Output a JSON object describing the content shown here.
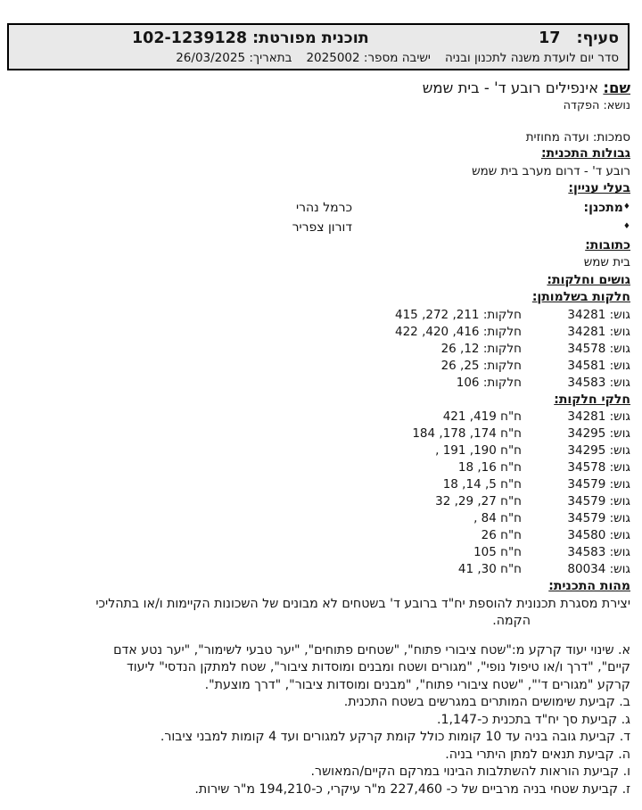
{
  "header": {
    "section_label": "סעיף:",
    "section_number": "17",
    "plan_label": "תוכנית מפורטת:",
    "plan_number": "102-1239128",
    "agenda_text": "סדר יום לועדת משנה לתכנון ובניה",
    "meeting_label": "ישיבה מספר:",
    "meeting_number": "2025002",
    "date_label": "בתאריך:",
    "date_value": "26/03/2025"
  },
  "name": {
    "label": "שם:",
    "value": "אינפילים רובע ד' - בית שמש"
  },
  "subject": {
    "label": "נושא:",
    "value": "הפקדה"
  },
  "authority": {
    "label": "סמכות:",
    "value": "ועדה מחוזית"
  },
  "boundaries": {
    "title": "גבולות התכנית:",
    "value": "רובע ד' - דרום מערב בית שמש"
  },
  "stakeholders": {
    "title": "בעלי עניין:",
    "rows": [
      {
        "bullet": "♦",
        "label": "מתכנן:",
        "value": "כרמל נהרי"
      },
      {
        "bullet": "♦",
        "label": "",
        "value": "דורון צפריר"
      }
    ]
  },
  "addresses": {
    "title": "כתובות:",
    "value": "בית שמש"
  },
  "blocks": {
    "title": "גושים וחלקות:",
    "whole_title": "חלקות בשלמותן:",
    "whole_rows": [
      {
        "gush": "גוש: 34281",
        "parcels": "חלקות: 211, 272, 415"
      },
      {
        "gush": "גוש: 34281",
        "parcels": "חלקות: 416, 420, 422"
      },
      {
        "gush": "גוש: 34578",
        "parcels": "חלקות: 12, 26"
      },
      {
        "gush": "גוש: 34581",
        "parcels": "חלקות: 25, 26"
      },
      {
        "gush": "גוש: 34583",
        "parcels": "חלקות: 106"
      }
    ],
    "partial_title": "חלקי חלקות:",
    "partial_rows": [
      {
        "gush": "גוש: 34281",
        "parcels": "ח\"ח 419, 421"
      },
      {
        "gush": "גוש: 34295",
        "parcels": "ח\"ח 174, 178, 184"
      },
      {
        "gush": "גוש: 34295",
        "parcels": "ח\"ח 190, 191 ,"
      },
      {
        "gush": "גוש: 34578",
        "parcels": "ח\"ח 16, 18"
      },
      {
        "gush": "גוש: 34579",
        "parcels": "ח\"ח 5, 14, 18"
      },
      {
        "gush": "גוש: 34579",
        "parcels": "ח\"ח 27, 29, 32"
      },
      {
        "gush": "גוש: 34579",
        "parcels": "ח\"ח 84 ,"
      },
      {
        "gush": "גוש: 34580",
        "parcels": "ח\"ח 26"
      },
      {
        "gush": "גוש: 34583",
        "parcels": "ח\"ח 105"
      },
      {
        "gush": "גוש: 80034",
        "parcels": "ח\"ח 30, 41"
      }
    ]
  },
  "essence": {
    "title": "מהות התכנית:",
    "intro_lines": [
      "יצירת מסגרת תכנונית להוספת יח\"ד ברובע ד' בשטחים לא מבונים של השכונות הקיימות ו/או בתהליכי",
      "הקמה."
    ],
    "clauses": [
      "א. שינוי יעוד קרקע מ:\"שטח ציבורי פתוח\", \"שטחים פתוחים\", \"יער טבעי לשימור\", \"יער נטע אדם",
      "קיים\", \"דרך ו/או טיפול נופי\", \"מגורים ושטח ומבנים ומוסדות ציבור\", שטח למתקן הנדסי\" ליעוד",
      "קרקע \"מגורים ד'\", \"שטח ציבורי פתוח\", \"מבנים ומוסדות ציבור\", \"דרך מוצעת\".",
      "ב. קביעת שימושים המותרים במגרשים בשטח התכנית.",
      "ג. קביעת סך יח\"ד בתכנית כ-1,147.",
      "ד. קביעת גובה בניה עד 10 קומות כולל קומת קרקע למגורים ועד 4 קומות למבני ציבור.",
      "ה. קביעת תנאים למתן היתרי בניה.",
      "ו. קביעת הוראות להשתלבות הבינוי במרקם הקיים/המאושר.",
      "ז. קביעת שטחי בניה מרביים של כ- 227,460 מ\"ר עיקרי, כ-194,210 מ\"ר שירות."
    ]
  }
}
